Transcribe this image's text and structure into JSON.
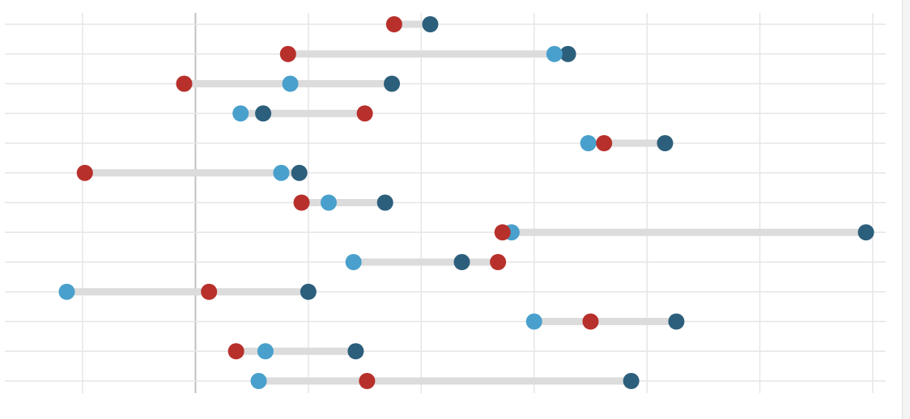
{
  "chart_data": {
    "type": "dumbbell",
    "x_ticks": [
      -5,
      0,
      5,
      10,
      15,
      20,
      25,
      30
    ],
    "xlim": [
      -8,
      31
    ],
    "grid": true,
    "series": [
      {
        "color": "#b8302b"
      },
      {
        "color": "#4aa0cc"
      },
      {
        "color": "#2c5f7c"
      }
    ],
    "rows": [
      {
        "values": [
          8.8,
          null,
          10.4
        ]
      },
      {
        "values": [
          4.1,
          15.9,
          16.5
        ]
      },
      {
        "values": [
          -0.5,
          4.2,
          8.7
        ]
      },
      {
        "values": [
          7.5,
          2.0,
          3.0
        ]
      },
      {
        "values": [
          18.1,
          17.4,
          20.8
        ]
      },
      {
        "values": [
          -4.9,
          3.8,
          4.6
        ]
      },
      {
        "values": [
          4.7,
          5.9,
          8.4
        ]
      },
      {
        "values": [
          13.6,
          14.0,
          29.7
        ]
      },
      {
        "values": [
          13.4,
          7.0,
          11.8
        ]
      },
      {
        "values": [
          0.6,
          -5.7,
          5.0
        ]
      },
      {
        "values": [
          17.5,
          15.0,
          21.3
        ]
      },
      {
        "values": [
          1.8,
          3.1,
          7.1
        ]
      },
      {
        "values": [
          7.6,
          2.8,
          19.3
        ]
      }
    ]
  },
  "colors": {
    "track": "#dcdcdc",
    "grid": "#e6e6e6",
    "zero_line": "#c2c2c2"
  }
}
